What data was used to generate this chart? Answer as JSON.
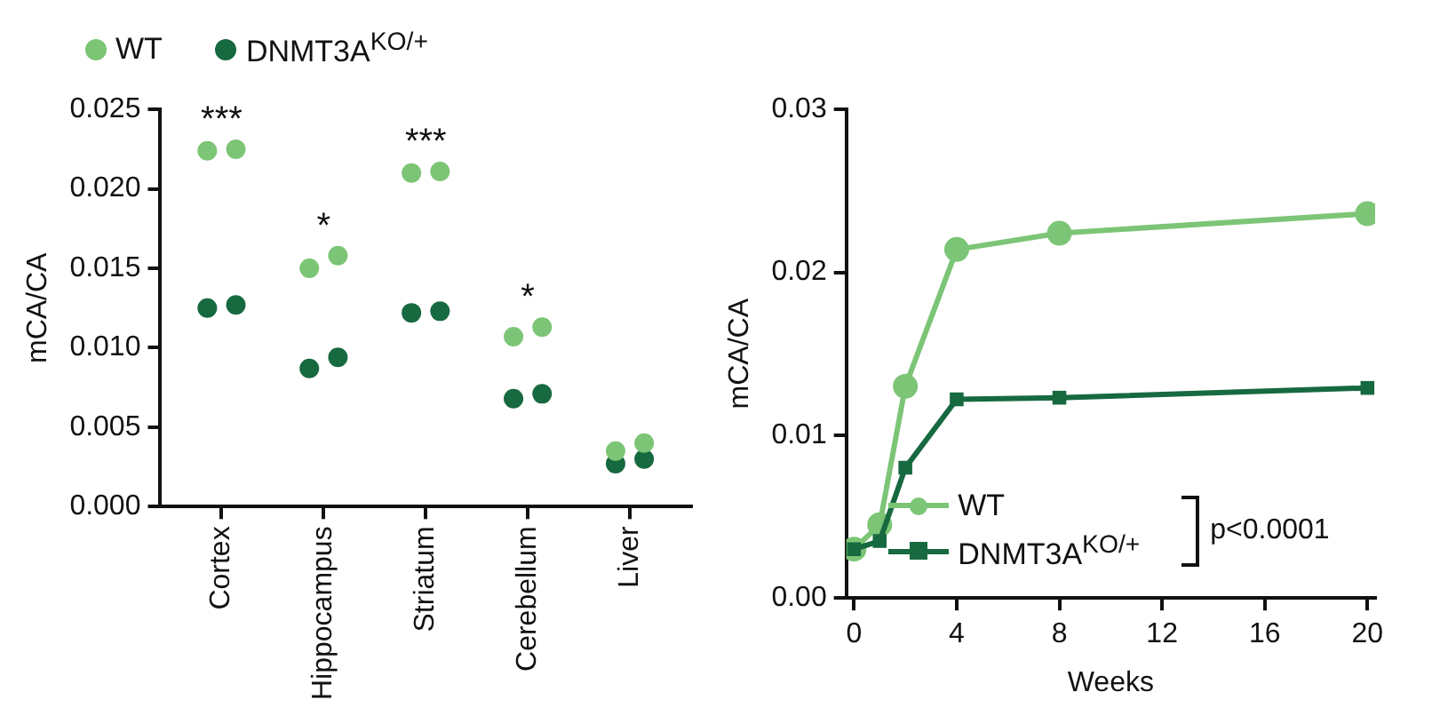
{
  "chart_data": [
    {
      "type": "scatter",
      "categories": [
        "Cortex",
        "Hippocampus",
        "Striatum",
        "Cerebellum",
        "Liver"
      ],
      "ylabel": "mCA/CA",
      "ylim": [
        0,
        0.025
      ],
      "yticks": [
        {
          "value": 0,
          "label": "0.000"
        },
        0.005,
        {
          "value": 0.01,
          "label": "0.010"
        },
        0.015,
        {
          "value": 0.02,
          "label": "0.020"
        },
        0.025
      ],
      "grid": false,
      "legend": "top",
      "marker": "circle",
      "series": [
        {
          "name": "WT",
          "color": "#7cc576",
          "x": [
            "Cortex",
            "Cortex",
            "Hippocampus",
            "Hippocampus",
            "Striatum",
            "Striatum",
            "Cerebellum",
            "Cerebellum",
            "Liver",
            "Liver"
          ],
          "values": [
            0.0224,
            0.0225,
            0.015,
            0.0158,
            0.021,
            0.0211,
            0.0107,
            0.0113,
            0.0035,
            0.004
          ]
        },
        {
          "name": "DNMT3A$^{KO/+}$",
          "color": "#17693f",
          "x": [
            "Cortex",
            "Cortex",
            "Hippocampus",
            "Hippocampus",
            "Striatum",
            "Striatum",
            "Cerebellum",
            "Cerebellum",
            "Liver",
            "Liver"
          ],
          "values": [
            0.0125,
            0.0127,
            0.0087,
            0.0094,
            0.0122,
            0.0123,
            0.0068,
            0.0071,
            0.0027,
            0.003
          ]
        }
      ],
      "annotations": [
        "***",
        "*",
        "***",
        "*"
      ]
    },
    {
      "type": "line",
      "x": [
        0,
        1,
        2,
        4,
        8,
        20
      ],
      "xlim": [
        -0.3,
        20.3
      ],
      "xticks": [
        0,
        4,
        8,
        12,
        16,
        20
      ],
      "xlabel": "Weeks",
      "ylabel": "mCA/CA",
      "ylim": [
        0,
        0.03
      ],
      "yticks": [
        {
          "value": 0,
          "label": "0.00"
        },
        0.01,
        0.02,
        0.03
      ],
      "grid": false,
      "legend": "bottom",
      "series": [
        {
          "name": "WT",
          "color": "#7cc576",
          "marker": "circle",
          "values": [
            0.003,
            0.0045,
            0.013,
            0.0214,
            0.0224,
            0.0236
          ]
        },
        {
          "name": "DNMT3A$^{KO/+}$",
          "color": "#17693f",
          "marker": "square",
          "values": [
            0.003,
            0.0035,
            0.008,
            0.0122,
            0.0123,
            0.0129
          ]
        }
      ],
      "annotations": [
        "p<0.0001"
      ]
    }
  ]
}
